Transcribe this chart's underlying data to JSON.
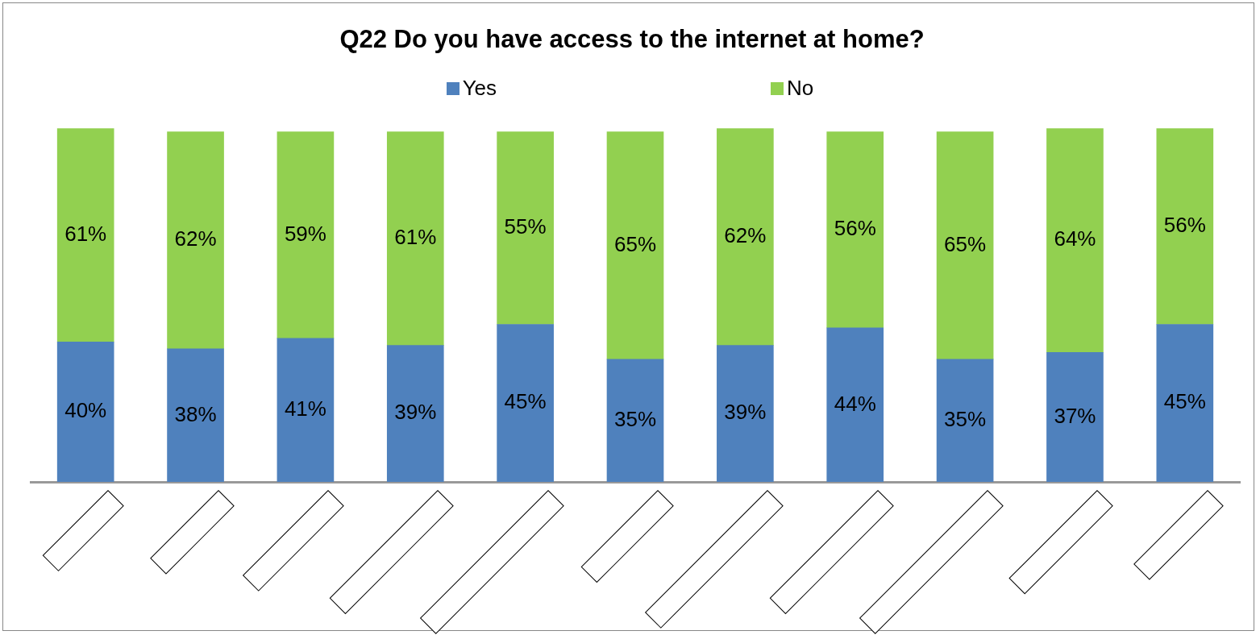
{
  "chart_data": {
    "type": "bar",
    "title": "Q22 Do you have access to the internet at home?",
    "categories": [
      null,
      null,
      null,
      null,
      null,
      null,
      null,
      null,
      null,
      null,
      null
    ],
    "stacked": true,
    "tick_labels": false,
    "legend": "top",
    "grid": false,
    "series": [
      {
        "name": "Yes",
        "color": "#4f81bd",
        "values": [
          40,
          38,
          41,
          39,
          45,
          35,
          39,
          44,
          35,
          37,
          45
        ],
        "value_labels": [
          "40%",
          "38%",
          "41%",
          "39%",
          "45%",
          "35%",
          "39%",
          "44%",
          "35%",
          "37%",
          "45%"
        ]
      },
      {
        "name": "No",
        "color": "#92d050",
        "values": [
          61,
          62,
          59,
          61,
          55,
          65,
          62,
          56,
          65,
          64,
          56
        ],
        "value_labels": [
          "61%",
          "62%",
          "59%",
          "61%",
          "55%",
          "65%",
          "62%",
          "56%",
          "65%",
          "64%",
          "56%"
        ]
      }
    ]
  }
}
